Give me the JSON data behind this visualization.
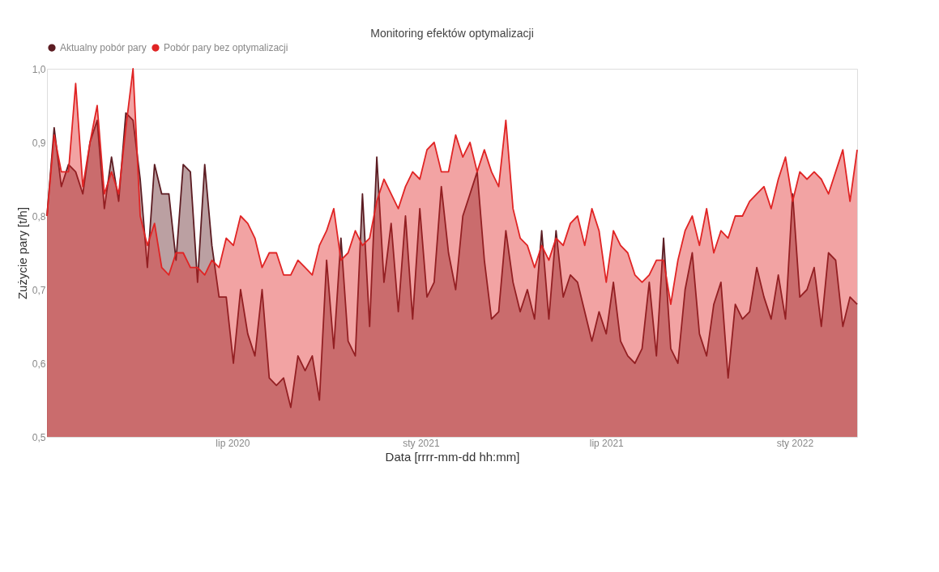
{
  "chart_data": {
    "type": "area",
    "title": "Monitoring efektów optymalizacji",
    "xlabel": "Data [rrrr-mm-dd hh:mm]",
    "ylabel": "Zużycie pary [t/h]",
    "x": [
      "2020-01-02",
      "2020-01-09",
      "2020-01-16",
      "2020-01-23",
      "2020-01-30",
      "2020-02-06",
      "2020-02-13",
      "2020-02-20",
      "2020-02-27",
      "2020-03-05",
      "2020-03-12",
      "2020-03-19",
      "2020-03-26",
      "2020-04-02",
      "2020-04-09",
      "2020-04-16",
      "2020-04-23",
      "2020-04-30",
      "2020-05-07",
      "2020-05-14",
      "2020-05-21",
      "2020-05-28",
      "2020-06-04",
      "2020-06-11",
      "2020-06-18",
      "2020-06-25",
      "2020-07-02",
      "2020-07-09",
      "2020-07-16",
      "2020-07-23",
      "2020-07-30",
      "2020-08-06",
      "2020-08-13",
      "2020-08-20",
      "2020-08-27",
      "2020-09-03",
      "2020-09-10",
      "2020-09-17",
      "2020-09-24",
      "2020-10-01",
      "2020-10-08",
      "2020-10-15",
      "2020-10-22",
      "2020-10-29",
      "2020-11-05",
      "2020-11-12",
      "2020-11-19",
      "2020-11-26",
      "2020-12-03",
      "2020-12-10",
      "2020-12-17",
      "2020-12-24",
      "2020-12-31",
      "2021-01-07",
      "2021-01-14",
      "2021-01-21",
      "2021-01-28",
      "2021-02-04",
      "2021-02-11",
      "2021-02-18",
      "2021-02-25",
      "2021-03-04",
      "2021-03-11",
      "2021-03-18",
      "2021-03-25",
      "2021-04-01",
      "2021-04-08",
      "2021-04-15",
      "2021-04-22",
      "2021-04-29",
      "2021-05-06",
      "2021-05-13",
      "2021-05-20",
      "2021-05-27",
      "2021-06-03",
      "2021-06-10",
      "2021-06-17",
      "2021-06-24",
      "2021-07-01",
      "2021-07-08",
      "2021-07-15",
      "2021-07-22",
      "2021-07-29",
      "2021-08-05",
      "2021-08-12",
      "2021-08-19",
      "2021-08-26",
      "2021-09-02",
      "2021-09-09",
      "2021-09-16",
      "2021-09-23",
      "2021-09-30",
      "2021-10-07",
      "2021-10-14",
      "2021-10-21",
      "2021-10-28",
      "2021-11-04",
      "2021-11-11",
      "2021-11-18",
      "2021-11-25",
      "2021-12-02",
      "2021-12-09",
      "2021-12-16",
      "2021-12-23",
      "2021-12-30",
      "2022-01-06",
      "2022-01-13",
      "2022-01-20",
      "2022-01-27",
      "2022-02-03",
      "2022-02-10",
      "2022-02-17",
      "2022-02-24",
      "2022-03-03"
    ],
    "series": [
      {
        "name": "Aktualny pobór pary",
        "color": "#5c1c22",
        "values": [
          0.8,
          0.92,
          0.84,
          0.87,
          0.86,
          0.83,
          0.9,
          0.93,
          0.81,
          0.88,
          0.82,
          0.94,
          0.93,
          0.85,
          0.73,
          0.87,
          0.83,
          0.83,
          0.74,
          0.87,
          0.86,
          0.71,
          0.87,
          0.76,
          0.69,
          0.69,
          0.6,
          0.7,
          0.64,
          0.61,
          0.7,
          0.58,
          0.57,
          0.58,
          0.54,
          0.61,
          0.59,
          0.61,
          0.55,
          0.74,
          0.62,
          0.77,
          0.63,
          0.61,
          0.83,
          0.65,
          0.88,
          0.71,
          0.79,
          0.67,
          0.8,
          0.66,
          0.81,
          0.69,
          0.71,
          0.84,
          0.75,
          0.7,
          0.8,
          0.83,
          0.86,
          0.74,
          0.66,
          0.67,
          0.78,
          0.71,
          0.67,
          0.7,
          0.66,
          0.78,
          0.66,
          0.78,
          0.69,
          0.72,
          0.71,
          0.67,
          0.63,
          0.67,
          0.64,
          0.71,
          0.63,
          0.61,
          0.6,
          0.62,
          0.71,
          0.61,
          0.77,
          0.62,
          0.6,
          0.7,
          0.75,
          0.64,
          0.61,
          0.68,
          0.71,
          0.58,
          0.68,
          0.66,
          0.67,
          0.73,
          0.69,
          0.66,
          0.72,
          0.66,
          0.83,
          0.69,
          0.7,
          0.73,
          0.65,
          0.75,
          0.74,
          0.65,
          0.69,
          0.68
        ]
      },
      {
        "name": "Pobór pary bez optymalizacji",
        "color": "#e02424",
        "values": [
          0.8,
          0.91,
          0.86,
          0.86,
          0.98,
          0.84,
          0.9,
          0.95,
          0.83,
          0.86,
          0.83,
          0.92,
          1.0,
          0.8,
          0.76,
          0.79,
          0.73,
          0.72,
          0.75,
          0.75,
          0.73,
          0.73,
          0.72,
          0.74,
          0.73,
          0.77,
          0.76,
          0.8,
          0.79,
          0.77,
          0.73,
          0.75,
          0.75,
          0.72,
          0.72,
          0.74,
          0.73,
          0.72,
          0.76,
          0.78,
          0.81,
          0.74,
          0.75,
          0.78,
          0.76,
          0.77,
          0.82,
          0.85,
          0.83,
          0.81,
          0.84,
          0.86,
          0.85,
          0.89,
          0.9,
          0.86,
          0.86,
          0.91,
          0.88,
          0.9,
          0.86,
          0.89,
          0.86,
          0.84,
          0.93,
          0.81,
          0.77,
          0.76,
          0.73,
          0.76,
          0.74,
          0.77,
          0.76,
          0.79,
          0.8,
          0.76,
          0.81,
          0.78,
          0.71,
          0.78,
          0.76,
          0.75,
          0.72,
          0.71,
          0.72,
          0.74,
          0.74,
          0.68,
          0.74,
          0.78,
          0.8,
          0.76,
          0.81,
          0.75,
          0.78,
          0.77,
          0.8,
          0.8,
          0.82,
          0.83,
          0.84,
          0.81,
          0.85,
          0.88,
          0.82,
          0.86,
          0.85,
          0.86,
          0.85,
          0.83,
          0.86,
          0.89,
          0.82,
          0.89
        ]
      }
    ],
    "xlim": [
      "2020-01-02",
      "2022-03-03"
    ],
    "xticks": [
      {
        "value": "2020-07-01",
        "label": "lip 2020"
      },
      {
        "value": "2021-01-01",
        "label": "sty 2021"
      },
      {
        "value": "2021-07-01",
        "label": "lip 2021"
      },
      {
        "value": "2022-01-01",
        "label": "sty 2022"
      }
    ],
    "ylim": [
      0.5,
      1.0
    ],
    "yticks": [
      {
        "value": 0.5,
        "label": "0,5"
      },
      {
        "value": 0.6,
        "label": "0,6"
      },
      {
        "value": 0.7,
        "label": "0,7"
      },
      {
        "value": 0.8,
        "label": "0,8"
      },
      {
        "value": 0.9,
        "label": "0,9"
      },
      {
        "value": 1.0,
        "label": "1,0"
      }
    ],
    "grid": false,
    "legend": "top"
  }
}
